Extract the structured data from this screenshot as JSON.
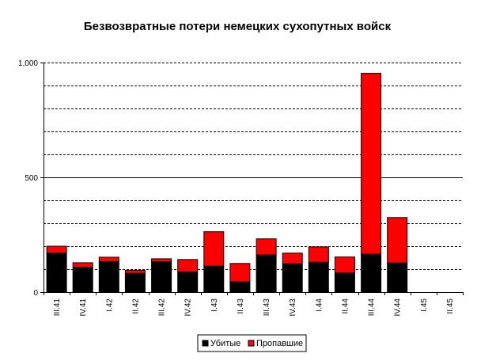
{
  "chart_data": {
    "type": "bar",
    "stacked": true,
    "title": "Безвозвратные потери немецких сухопутных войск",
    "xlabel": "",
    "ylabel": "",
    "categories": [
      "III.41",
      "IV.41",
      "I.42",
      "II.42",
      "III.42",
      "IV.42",
      "I.43",
      "II.43",
      "III.43",
      "IV.43",
      "I.44",
      "II.44",
      "III.44",
      "IV.44",
      "I.45",
      "II.45"
    ],
    "series": [
      {
        "name": "Убитые",
        "color": "#000000",
        "values": [
          170,
          108,
          133,
          82,
          132,
          88,
          113,
          45,
          162,
          123,
          130,
          83,
          165,
          127,
          0,
          0
        ]
      },
      {
        "name": "Пропавшие",
        "color": "#ff0000",
        "values": [
          30,
          20,
          19,
          13,
          13,
          54,
          150,
          80,
          70,
          47,
          67,
          70,
          788,
          198,
          0,
          0
        ]
      }
    ],
    "ylim": [
      0,
      1000
    ],
    "yticks": [
      0,
      500,
      1000
    ],
    "ytick_labels": [
      "0",
      "500",
      "1,000"
    ],
    "grid": {
      "major_solid": [
        500
      ],
      "dashed_step": 100
    },
    "legend": {
      "placement": "bottom-center",
      "entries": [
        "Убитые",
        "Пропавшие"
      ]
    }
  }
}
